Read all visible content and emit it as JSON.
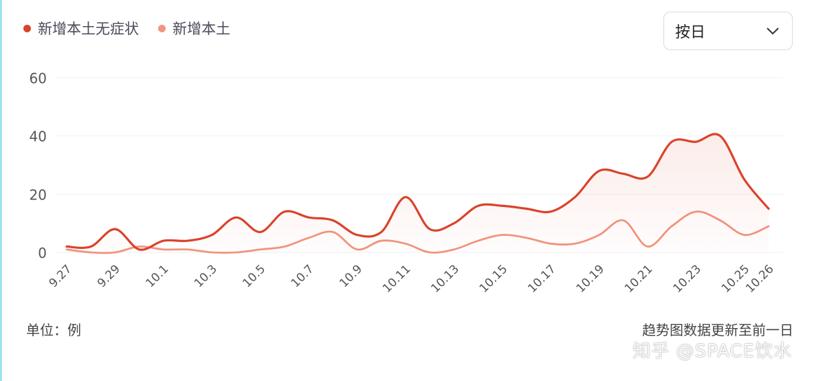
{
  "legend": [
    {
      "label": "新增本土无症状",
      "color": "#d9432b"
    },
    {
      "label": "新增本土",
      "color": "#f2957e"
    }
  ],
  "select": {
    "value": "按日",
    "icon": "chevron-down-icon"
  },
  "footer": {
    "unit": "单位：例",
    "note": "趋势图数据更新至前一日"
  },
  "watermark": "知乎 @SPACE饮水",
  "chart_data": {
    "type": "line",
    "categories": [
      "9.27",
      "9.28",
      "9.29",
      "9.30",
      "10.1",
      "10.2",
      "10.3",
      "10.4",
      "10.5",
      "10.6",
      "10.7",
      "10.8",
      "10.9",
      "10.10",
      "10.11",
      "10.12",
      "10.13",
      "10.14",
      "10.15",
      "10.16",
      "10.17",
      "10.18",
      "10.19",
      "10.20",
      "10.21",
      "10.22",
      "10.23",
      "10.24",
      "10.25",
      "10.26"
    ],
    "tick_labels": [
      "9.27",
      "9.29",
      "10.1",
      "10.3",
      "10.5",
      "10.7",
      "10.9",
      "10.11",
      "10.13",
      "10.15",
      "10.17",
      "10.19",
      "10.21",
      "10.23",
      "10.25",
      "10.26"
    ],
    "series": [
      {
        "name": "新增本土无症状",
        "color": "#d9432b",
        "values": [
          2,
          2,
          8,
          1,
          4,
          4,
          6,
          12,
          7,
          14,
          12,
          11,
          6,
          7,
          19,
          8,
          10,
          16,
          16,
          15,
          14,
          19,
          28,
          27,
          26,
          38,
          38,
          40,
          25,
          15
        ]
      },
      {
        "name": "新增本土",
        "color": "#f2957e",
        "values": [
          1,
          0,
          0,
          2,
          1,
          1,
          0,
          0,
          1,
          2,
          5,
          7,
          1,
          4,
          3,
          0,
          1,
          4,
          6,
          5,
          3,
          3,
          6,
          11,
          2,
          9,
          14,
          11,
          6,
          9
        ]
      }
    ],
    "ylim": [
      0,
      60
    ],
    "yticks": [
      0,
      20,
      40,
      60
    ],
    "grid": true,
    "legend_position": "top-left"
  }
}
